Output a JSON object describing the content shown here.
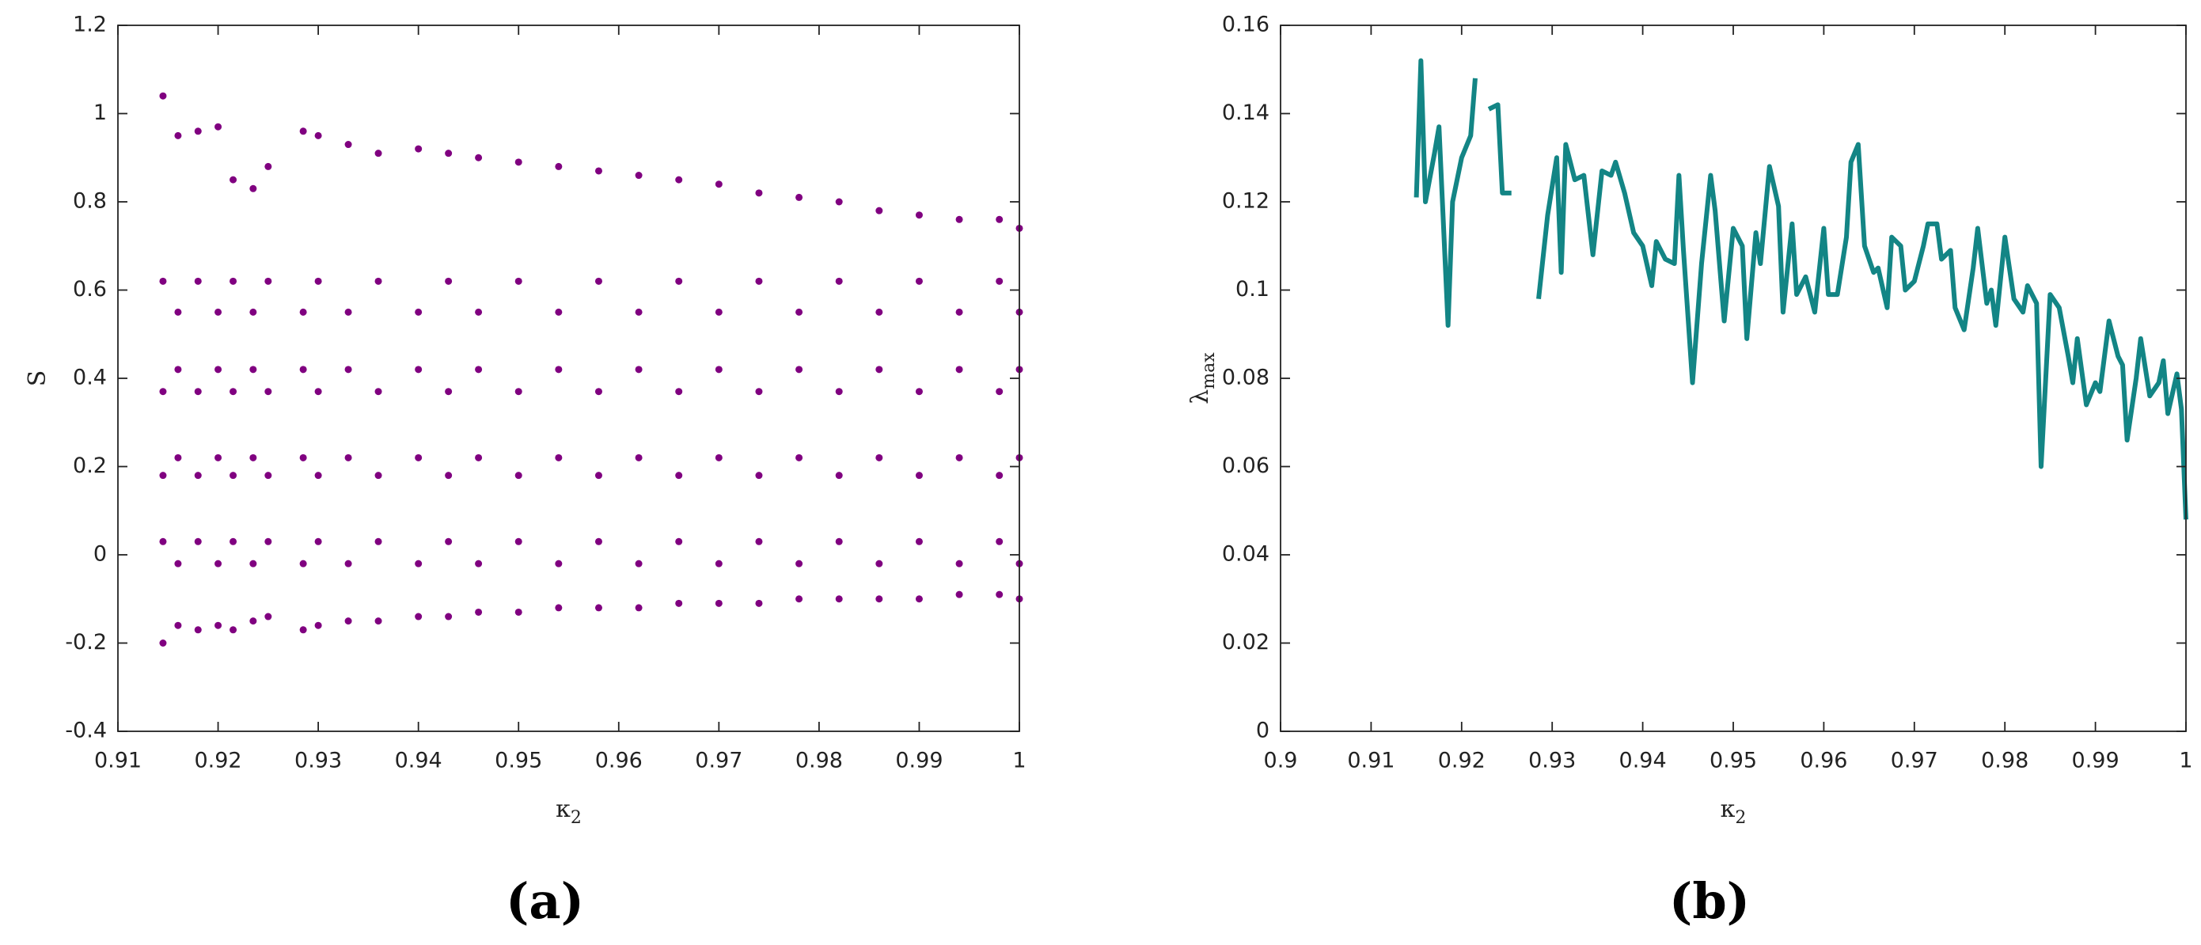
{
  "chart_data": [
    {
      "type": "scatter",
      "caption": "(a)",
      "color": "#800080",
      "x_label": {
        "symbol": "κ",
        "subscript": "2"
      },
      "y_label": {
        "symbol": "S"
      },
      "xlim": [
        0.91,
        1
      ],
      "ylim": [
        -0.4,
        1.2
      ],
      "xticks": [
        0.91,
        0.92,
        0.93,
        0.94,
        0.95,
        0.96,
        0.97,
        0.98,
        0.99,
        1
      ],
      "yticks": [
        -0.4,
        -0.2,
        0,
        0.2,
        0.4,
        0.6,
        0.8,
        1,
        1.2
      ],
      "x": [
        0.9145,
        0.9145,
        0.9145,
        0.9145,
        0.9145,
        0.9145,
        0.916,
        0.916,
        0.916,
        0.916,
        0.916,
        0.916,
        0.918,
        0.918,
        0.918,
        0.918,
        0.918,
        0.918,
        0.92,
        0.92,
        0.92,
        0.92,
        0.92,
        0.92,
        0.9215,
        0.9215,
        0.9215,
        0.9215,
        0.9215,
        0.9215,
        0.9235,
        0.9235,
        0.9235,
        0.9235,
        0.9235,
        0.9235,
        0.925,
        0.925,
        0.925,
        0.925,
        0.925,
        0.925,
        0.9285,
        0.9285,
        0.9285,
        0.9285,
        0.9285,
        0.9285,
        0.93,
        0.93,
        0.93,
        0.93,
        0.93,
        0.93,
        0.933,
        0.933,
        0.933,
        0.933,
        0.933,
        0.933,
        0.936,
        0.936,
        0.936,
        0.936,
        0.936,
        0.936,
        0.94,
        0.94,
        0.94,
        0.94,
        0.94,
        0.94,
        0.943,
        0.943,
        0.943,
        0.943,
        0.943,
        0.943,
        0.946,
        0.946,
        0.946,
        0.946,
        0.946,
        0.946,
        0.95,
        0.95,
        0.95,
        0.95,
        0.95,
        0.95,
        0.954,
        0.954,
        0.954,
        0.954,
        0.954,
        0.954,
        0.958,
        0.958,
        0.958,
        0.958,
        0.958,
        0.958,
        0.962,
        0.962,
        0.962,
        0.962,
        0.962,
        0.962,
        0.966,
        0.966,
        0.966,
        0.966,
        0.966,
        0.966,
        0.97,
        0.97,
        0.97,
        0.97,
        0.97,
        0.97,
        0.974,
        0.974,
        0.974,
        0.974,
        0.974,
        0.974,
        0.978,
        0.978,
        0.978,
        0.978,
        0.978,
        0.978,
        0.982,
        0.982,
        0.982,
        0.982,
        0.982,
        0.982,
        0.986,
        0.986,
        0.986,
        0.986,
        0.986,
        0.986,
        0.99,
        0.99,
        0.99,
        0.99,
        0.99,
        0.99,
        0.994,
        0.994,
        0.994,
        0.994,
        0.994,
        0.994,
        0.998,
        0.998,
        0.998,
        0.998,
        0.998,
        0.998,
        1,
        1,
        1,
        1,
        1,
        1
      ],
      "y": [
        1.04,
        0.62,
        0.37,
        0.18,
        0.03,
        -0.2,
        0.95,
        0.55,
        0.42,
        0.22,
        -0.02,
        -0.16,
        0.96,
        0.62,
        0.37,
        0.18,
        0.03,
        -0.17,
        0.97,
        0.55,
        0.42,
        0.22,
        -0.02,
        -0.16,
        0.85,
        0.62,
        0.37,
        0.18,
        0.03,
        -0.17,
        0.83,
        0.55,
        0.42,
        0.22,
        -0.02,
        -0.15,
        0.88,
        0.62,
        0.37,
        0.18,
        0.03,
        -0.14,
        0.96,
        0.55,
        0.42,
        0.22,
        -0.02,
        -0.17,
        0.95,
        0.62,
        0.37,
        0.18,
        0.03,
        -0.16,
        0.93,
        0.55,
        0.42,
        0.22,
        -0.02,
        -0.15,
        0.91,
        0.62,
        0.37,
        0.18,
        0.03,
        -0.15,
        0.92,
        0.55,
        0.42,
        0.22,
        -0.02,
        -0.14,
        0.91,
        0.62,
        0.37,
        0.18,
        0.03,
        -0.14,
        0.9,
        0.55,
        0.42,
        0.22,
        -0.02,
        -0.13,
        0.89,
        0.62,
        0.37,
        0.18,
        0.03,
        -0.13,
        0.88,
        0.55,
        0.42,
        0.22,
        -0.02,
        -0.12,
        0.87,
        0.62,
        0.37,
        0.18,
        0.03,
        -0.12,
        0.86,
        0.55,
        0.42,
        0.22,
        -0.02,
        -0.12,
        0.85,
        0.62,
        0.37,
        0.18,
        0.03,
        -0.11,
        0.84,
        0.55,
        0.42,
        0.22,
        -0.02,
        -0.11,
        0.82,
        0.62,
        0.37,
        0.18,
        0.03,
        -0.11,
        0.81,
        0.55,
        0.42,
        0.22,
        -0.02,
        -0.1,
        0.8,
        0.62,
        0.37,
        0.18,
        0.03,
        -0.1,
        0.78,
        0.55,
        0.42,
        0.22,
        -0.02,
        -0.1,
        0.77,
        0.62,
        0.37,
        0.18,
        0.03,
        -0.1,
        0.76,
        0.55,
        0.42,
        0.22,
        -0.02,
        -0.09,
        0.76,
        0.62,
        0.37,
        0.18,
        0.03,
        -0.09,
        0.74,
        0.55,
        0.42,
        0.22,
        -0.02,
        -0.1
      ]
    },
    {
      "type": "line",
      "caption": "(b)",
      "color": "#138585",
      "x_label": {
        "symbol": "κ",
        "subscript": "2"
      },
      "y_label": {
        "symbol": "λ",
        "subscript": "max"
      },
      "xlim": [
        0.9,
        1
      ],
      "ylim": [
        0,
        0.16
      ],
      "xticks": [
        0.9,
        0.91,
        0.92,
        0.93,
        0.94,
        0.95,
        0.96,
        0.97,
        0.98,
        0.99,
        1
      ],
      "yticks": [
        0,
        0.02,
        0.04,
        0.06,
        0.08,
        0.1,
        0.12,
        0.14,
        0.16
      ],
      "x": [
        0.915,
        0.9155,
        0.916,
        0.917,
        0.9175,
        0.9185,
        0.919,
        0.92,
        0.921,
        0.9215,
        0.922,
        0.923,
        0.924,
        0.9245,
        0.9255,
        0.927,
        0.9285,
        0.9295,
        0.9305,
        0.931,
        0.9315,
        0.9325,
        0.9335,
        0.9345,
        0.9355,
        0.9365,
        0.937,
        0.938,
        0.939,
        0.94,
        0.941,
        0.9415,
        0.9425,
        0.9435,
        0.944,
        0.9445,
        0.9455,
        0.9465,
        0.9475,
        0.948,
        0.949,
        0.95,
        0.951,
        0.9515,
        0.9525,
        0.953,
        0.954,
        0.955,
        0.9555,
        0.9565,
        0.957,
        0.958,
        0.959,
        0.96,
        0.9605,
        0.9615,
        0.9625,
        0.963,
        0.9638,
        0.9645,
        0.9655,
        0.966,
        0.967,
        0.9675,
        0.9685,
        0.969,
        0.97,
        0.971,
        0.9715,
        0.9725,
        0.973,
        0.974,
        0.9745,
        0.9755,
        0.9765,
        0.977,
        0.978,
        0.9785,
        0.979,
        0.98,
        0.981,
        0.982,
        0.9825,
        0.9835,
        0.984,
        0.985,
        0.986,
        0.987,
        0.9875,
        0.988,
        0.989,
        0.99,
        0.9905,
        0.9915,
        0.9925,
        0.993,
        0.9935,
        0.9945,
        0.995,
        0.996,
        0.997,
        0.9975,
        0.998,
        0.999,
        0.9995,
        1
      ],
      "y": [
        0.121,
        0.152,
        0.12,
        0.131,
        0.137,
        0.092,
        0.12,
        0.13,
        0.135,
        0.148,
        null,
        0.141,
        0.142,
        0.122,
        0.122,
        null,
        0.098,
        0.117,
        0.13,
        0.104,
        0.133,
        0.125,
        0.126,
        0.108,
        0.127,
        0.126,
        0.129,
        0.122,
        0.113,
        0.11,
        0.101,
        0.111,
        0.107,
        0.106,
        0.126,
        0.109,
        0.079,
        0.106,
        0.126,
        0.118,
        0.093,
        0.114,
        0.11,
        0.089,
        0.113,
        0.106,
        0.128,
        0.119,
        0.095,
        0.115,
        0.099,
        0.103,
        0.095,
        0.114,
        0.099,
        0.099,
        0.112,
        0.129,
        0.133,
        0.11,
        0.104,
        0.105,
        0.096,
        0.112,
        0.11,
        0.1,
        0.102,
        0.11,
        0.115,
        0.115,
        0.107,
        0.109,
        0.096,
        0.091,
        0.105,
        0.114,
        0.097,
        0.1,
        0.092,
        0.112,
        0.098,
        0.095,
        0.101,
        0.097,
        0.06,
        0.099,
        0.096,
        0.085,
        0.079,
        0.089,
        0.074,
        0.079,
        0.077,
        0.093,
        0.085,
        0.083,
        0.066,
        0.08,
        0.089,
        0.076,
        0.079,
        0.084,
        0.072,
        0.081,
        0.073,
        0.048
      ]
    }
  ]
}
